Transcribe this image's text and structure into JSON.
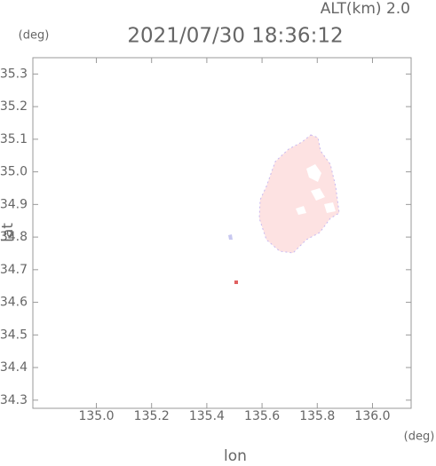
{
  "chart_data": {
    "type": "map",
    "title": "2021/07/30 18:36:12",
    "subtitle": "ALT(km) 2.0",
    "y_unit": "(deg)",
    "x_unit": "(deg)",
    "x_label": "lon",
    "y_label": "lat",
    "xlim": [
      134.77,
      136.14
    ],
    "ylim": [
      34.275,
      35.35
    ],
    "xticks": [
      {
        "value": 135.0,
        "label": "135.0"
      },
      135.2,
      135.4,
      135.6,
      135.8,
      {
        "value": 136.0,
        "label": "136.0"
      }
    ],
    "yticks": [
      34.3,
      34.4,
      34.5,
      34.6,
      34.7,
      34.8,
      34.9,
      {
        "value": 35.0,
        "label": "35.0"
      },
      35.1,
      35.2,
      35.3
    ]
  }
}
